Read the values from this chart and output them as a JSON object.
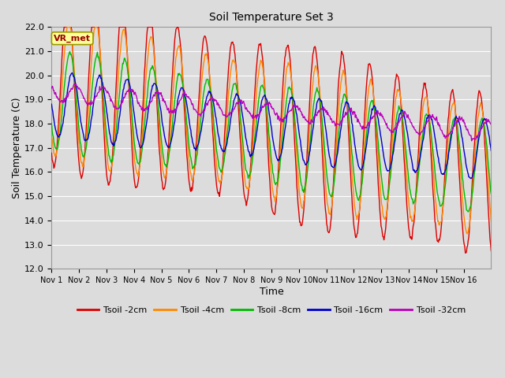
{
  "title": "Soil Temperature Set 3",
  "xlabel": "Time",
  "ylabel": "Soil Temperature (C)",
  "ylim": [
    12.0,
    22.0
  ],
  "yticks": [
    12.0,
    13.0,
    14.0,
    15.0,
    16.0,
    17.0,
    18.0,
    19.0,
    20.0,
    21.0,
    22.0
  ],
  "xtick_labels": [
    "Nov 1",
    "Nov 2",
    "Nov 3",
    "Nov 4",
    "Nov 5",
    "Nov 6",
    "Nov 7",
    "Nov 8",
    "Nov 9",
    "Nov 10",
    "Nov 11",
    "Nov 12",
    "Nov 13",
    "Nov 14",
    "Nov 15",
    "Nov 16"
  ],
  "n_days": 16,
  "annotation_text": "VR_met",
  "annotation_color": "#990000",
  "annotation_bg": "#ffff99",
  "annotation_edge": "#999900",
  "colors": {
    "Tsoil -2cm": "#dd0000",
    "Tsoil -4cm": "#ff8800",
    "Tsoil -8cm": "#00bb00",
    "Tsoil -16cm": "#0000cc",
    "Tsoil -32cm": "#bb00bb"
  },
  "bg_color": "#dcdcdc",
  "grid_color": "#ffffff",
  "fig_bg": "#dcdcdc",
  "lw": 1.0
}
